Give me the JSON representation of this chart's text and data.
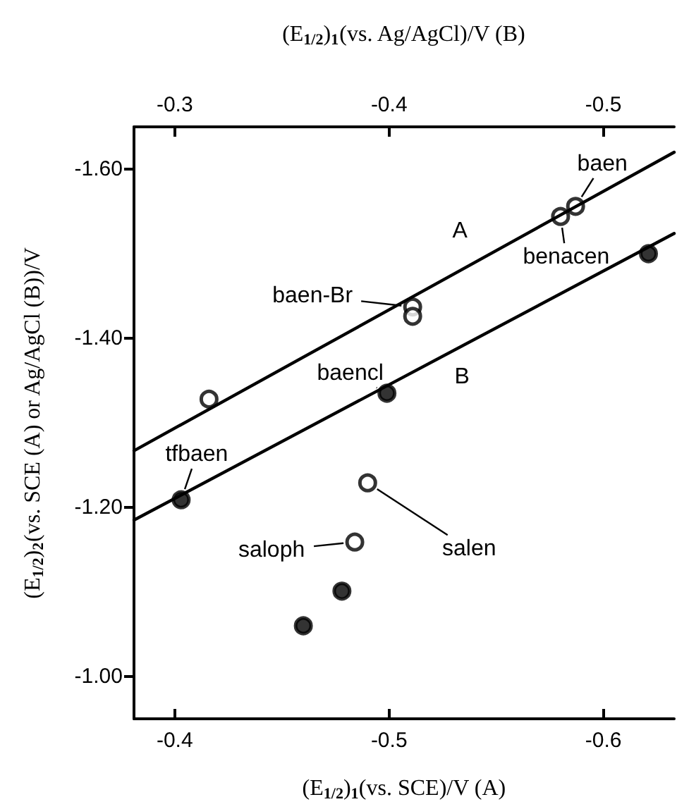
{
  "chart_data": {
    "type": "scatter",
    "xlabel": "(E$_{1/2}$)$_{1}$(vs. SCE)/V (A)",
    "x2label": "(E$_{1/2}$)$_{1}$(vs. Ag/AgCl)/V (B)",
    "ylabel": "(E$_{1/2}$)$_{2}$(vs. SCE (A) or Ag/AgCl (B))/V",
    "xlim": [
      -0.381,
      -0.633
    ],
    "xticks": [
      -0.4,
      -0.5,
      -0.6
    ],
    "x2lim": [
      -0.281,
      -0.533
    ],
    "x2ticks": [
      -0.3,
      -0.4,
      -0.5
    ],
    "ylim": [
      -0.95,
      -1.65
    ],
    "yticks": [
      {
        "value": -1.0,
        "label": "-1.00"
      },
      {
        "value": -1.2,
        "label": "-1.20"
      },
      {
        "value": -1.4,
        "label": "-1.40"
      },
      {
        "value": -1.6,
        "label": "-1.60"
      }
    ],
    "marker": "circle",
    "series": [
      {
        "type": "line",
        "color": "#000000",
        "line_style": "solid",
        "marker": "none",
        "x": [
          -0.381,
          -0.633
        ],
        "values": [
          -1.267,
          -1.62
        ]
      },
      {
        "type": "line",
        "color": "#000000",
        "line_style": "solid",
        "marker": "none",
        "x": [
          -0.381,
          -0.633
        ],
        "values": [
          -1.185,
          -1.524
        ]
      },
      {
        "color": "#ffffff",
        "x": [
          -0.587,
          -0.58,
          -0.511,
          -0.511,
          -0.416,
          -0.49,
          -0.484
        ],
        "values": [
          -1.556,
          -1.544,
          -1.437,
          -1.426,
          -1.328,
          -1.229,
          -1.159
        ]
      },
      {
        "color": "#000000",
        "x": [
          -0.621,
          -0.499,
          -0.403,
          -0.478,
          -0.46
        ],
        "values": [
          -1.5,
          -1.335,
          -1.209,
          -1.101,
          -1.06
        ]
      }
    ],
    "annotations": [
      {
        "text": "A",
        "x": -0.533,
        "y": -1.48
      },
      {
        "text": "B",
        "x": -0.534,
        "y": -1.391
      },
      {
        "text": "baen",
        "x": -0.587,
        "y": -1.556
      },
      {
        "text": "benacen",
        "x": -0.58,
        "y": -1.544
      },
      {
        "text": "baen-Br",
        "x": -0.511,
        "y": -1.437
      },
      {
        "text": "baencl",
        "x": -0.499,
        "y": -1.335
      },
      {
        "text": "tfbaen",
        "x": -0.403,
        "y": -1.209
      },
      {
        "text": "saloph",
        "x": -0.484,
        "y": -1.159
      },
      {
        "text": "salen",
        "x": -0.49,
        "y": -1.229
      }
    ]
  }
}
